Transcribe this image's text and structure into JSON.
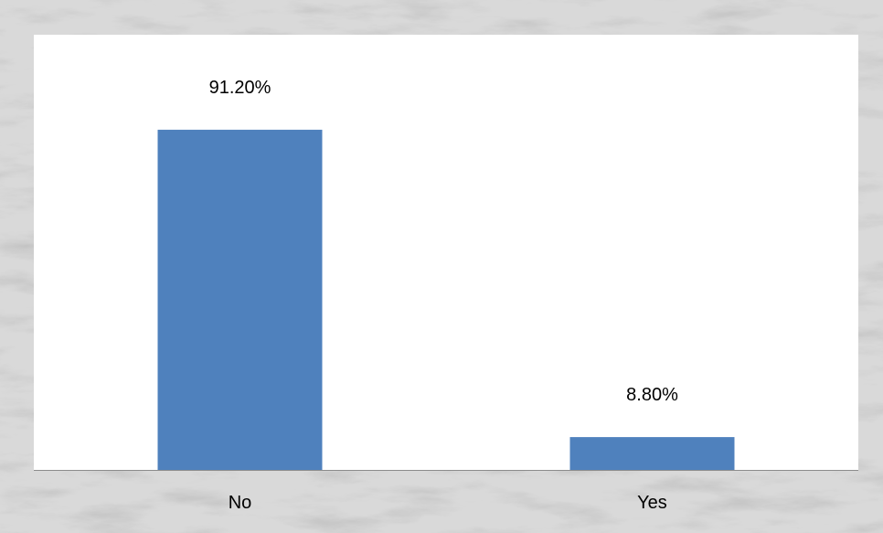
{
  "chart_data": {
    "type": "bar",
    "categories": [
      "No",
      "Yes"
    ],
    "values": [
      91.2,
      8.8
    ],
    "value_labels": [
      "91.20%",
      "8.80%"
    ],
    "value_unit": "percent",
    "ylim": [
      0,
      100
    ],
    "grid": false,
    "legend": "none",
    "title": "",
    "xlabel": "",
    "ylabel": ""
  },
  "colors": {
    "bar": "#4f81bd",
    "plot_background": "#ffffff",
    "frame_background": "#d4d4d4",
    "marble_vein": "#8c8c8c",
    "axis_line": "#8c8c8c"
  }
}
